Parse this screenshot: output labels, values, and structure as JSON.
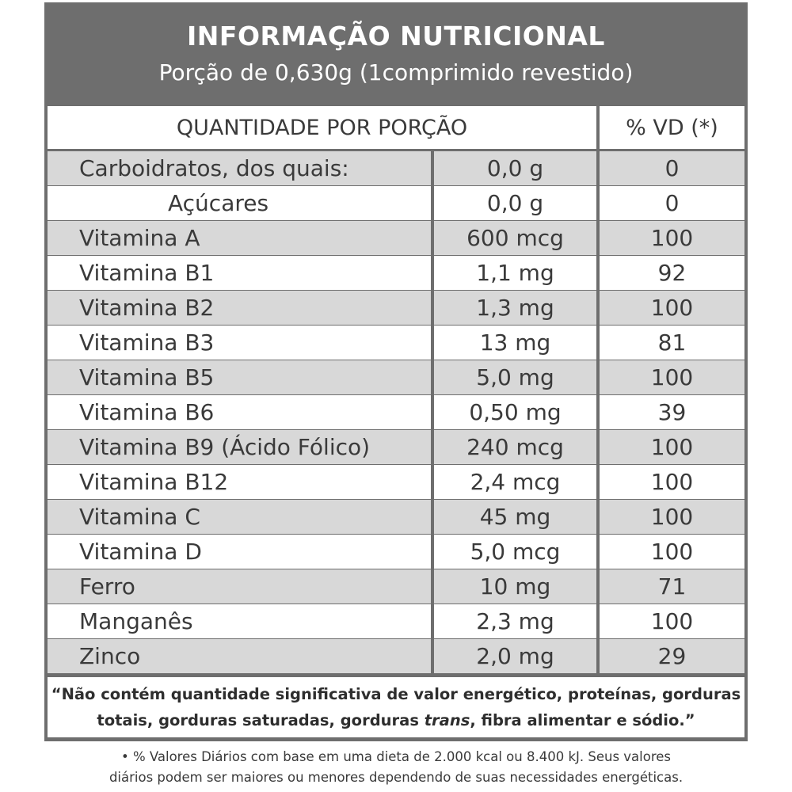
{
  "header": {
    "title": "INFORMAÇÃO NUTRICIONAL",
    "subtitle": "Porção de 0,630g (1comprimido revestido)"
  },
  "columns": {
    "quantity": "QUANTIDADE POR PORÇÃO",
    "vd": "% VD (*)"
  },
  "rows": [
    {
      "name": "Carboidratos, dos quais:",
      "amount": "0,0 g",
      "vd": "0"
    },
    {
      "name": "Açúcares",
      "amount": "0,0 g",
      "vd": "0"
    },
    {
      "name": "Vitamina A",
      "amount": "600 mcg",
      "vd": "100"
    },
    {
      "name": "Vitamina B1",
      "amount": "1,1 mg",
      "vd": "92"
    },
    {
      "name": "Vitamina B2",
      "amount": "1,3 mg",
      "vd": "100"
    },
    {
      "name": "Vitamina B3",
      "amount": "13 mg",
      "vd": "81"
    },
    {
      "name": "Vitamina B5",
      "amount": "5,0 mg",
      "vd": "100"
    },
    {
      "name": "Vitamina B6",
      "amount": "0,50 mg",
      "vd": "39"
    },
    {
      "name": "Vitamina B9 (Ácido Fólico)",
      "amount": "240 mcg",
      "vd": "100"
    },
    {
      "name": "Vitamina B12",
      "amount": "2,4 mcg",
      "vd": "100"
    },
    {
      "name": "Vitamina C",
      "amount": "45 mg",
      "vd": "100"
    },
    {
      "name": "Vitamina D",
      "amount": "5,0 mcg",
      "vd": "100"
    },
    {
      "name": "Ferro",
      "amount": "10 mg",
      "vd": "71"
    },
    {
      "name": "Manganês",
      "amount": "2,3 mg",
      "vd": "100"
    },
    {
      "name": "Zinco",
      "amount": "2,0 mg",
      "vd": "29"
    }
  ],
  "footnote": {
    "line1": "“Não contém quantidade significativa de valor energético, proteínas, gorduras",
    "line2_a": "totais, gorduras saturadas, gorduras ",
    "line2_trans": "trans",
    "line2_b": ", fibra alimentar e sódio.”"
  },
  "bottom_note": {
    "line1": "• % Valores Diários com base em uma dieta de 2.000 kcal ou 8.400 kJ. Seus valores",
    "line2": "diários podem ser maiores ou menores dependendo de suas necessidades energéticas."
  },
  "colors": {
    "frame": "#6e6e6e",
    "shaded_row": "#d8d8d8",
    "plain_row": "#ffffff"
  }
}
